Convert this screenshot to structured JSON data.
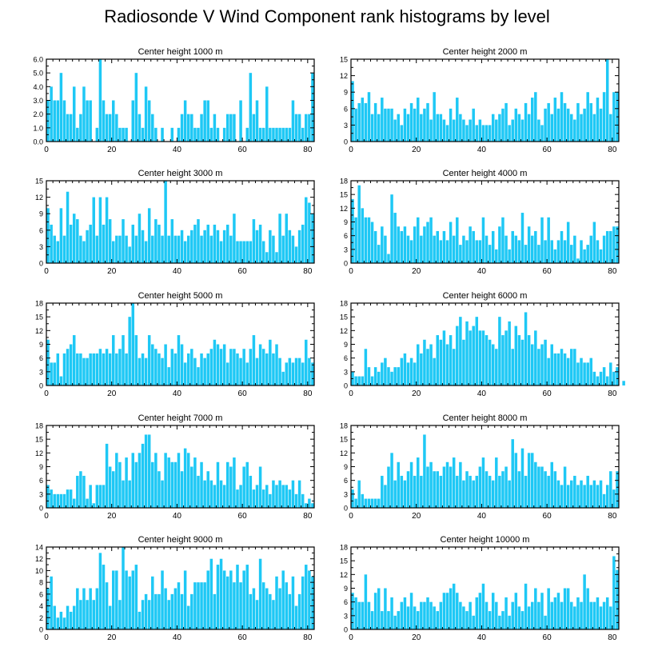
{
  "figure_title": "Radiosonde V Wind Component rank histograms by level",
  "colors": {
    "bar": "#1ec8f5",
    "bar_edge": "#ffffff",
    "axis": "#000000"
  },
  "chart_data": [
    {
      "type": "bar",
      "title": "Center height 1000 m",
      "xlabel": "",
      "ylabel": "",
      "xlim": [
        0,
        82
      ],
      "ylim": [
        0,
        6
      ],
      "xticks": [
        0,
        20,
        40,
        60,
        80
      ],
      "yticks": [
        0,
        1,
        2,
        3,
        4,
        5,
        6
      ],
      "ytick_labels": [
        "0.0",
        "1.0",
        "2.0",
        "3.0",
        "4.0",
        "5.0",
        "6.0"
      ],
      "values": [
        3,
        4,
        3,
        3,
        5,
        3,
        2,
        2,
        4,
        1,
        2,
        4,
        3,
        3,
        0,
        1,
        6,
        3,
        2,
        2,
        3,
        2,
        1,
        1,
        1,
        0,
        3,
        5,
        2,
        1,
        4,
        3,
        2,
        1,
        0,
        1,
        0,
        0,
        1,
        0,
        1,
        2,
        3,
        2,
        2,
        1,
        1,
        2,
        3,
        3,
        1,
        2,
        1,
        0,
        1,
        2,
        2,
        2,
        0,
        3,
        0,
        1,
        5,
        2,
        3,
        1,
        1,
        4,
        1,
        1,
        1,
        1,
        1,
        1,
        1,
        3,
        2,
        2,
        1,
        2,
        2,
        5
      ]
    },
    {
      "type": "bar",
      "title": "Center height 2000 m",
      "xlabel": "",
      "ylabel": "",
      "xlim": [
        0,
        82
      ],
      "ylim": [
        0,
        15
      ],
      "xticks": [
        0,
        20,
        40,
        60,
        80
      ],
      "yticks": [
        0,
        3,
        6,
        9,
        12,
        15
      ],
      "ytick_labels": [
        "0",
        "3",
        "6",
        "9",
        "12",
        "15"
      ],
      "values": [
        11,
        6,
        7,
        8,
        7,
        9,
        5,
        7,
        5,
        8,
        6,
        6,
        6,
        4,
        5,
        3,
        6,
        5,
        7,
        6,
        8,
        5,
        6,
        7,
        4,
        9,
        5,
        5,
        4,
        3,
        6,
        4,
        8,
        5,
        4,
        3,
        4,
        6,
        3,
        4,
        3,
        3,
        3,
        5,
        4,
        5,
        6,
        7,
        3,
        4,
        6,
        5,
        4,
        7,
        5,
        8,
        9,
        4,
        3,
        6,
        7,
        5,
        8,
        6,
        9,
        7,
        6,
        5,
        4,
        7,
        5,
        6,
        9,
        7,
        5,
        8,
        6,
        9,
        15,
        5,
        9,
        9
      ]
    },
    {
      "type": "bar",
      "title": "Center height 3000 m",
      "xlabel": "",
      "ylabel": "",
      "xlim": [
        0,
        82
      ],
      "ylim": [
        0,
        15
      ],
      "xticks": [
        0,
        20,
        40,
        60,
        80
      ],
      "yticks": [
        0,
        3,
        6,
        9,
        12,
        15
      ],
      "ytick_labels": [
        "0",
        "3",
        "6",
        "9",
        "12",
        "15"
      ],
      "values": [
        10,
        7,
        5,
        4,
        10,
        5,
        13,
        7,
        9,
        8,
        5,
        4,
        6,
        7,
        12,
        5,
        12,
        7,
        12,
        8,
        4,
        5,
        5,
        8,
        5,
        3,
        7,
        5,
        9,
        6,
        4,
        10,
        5,
        8,
        7,
        5,
        15,
        5,
        8,
        5,
        5,
        6,
        4,
        5,
        6,
        7,
        8,
        5,
        6,
        7,
        5,
        7,
        6,
        4,
        6,
        7,
        5,
        9,
        4,
        4,
        4,
        4,
        4,
        8,
        6,
        7,
        4,
        2,
        6,
        5,
        2,
        9,
        5,
        9,
        6,
        5,
        3,
        6,
        7,
        12,
        11,
        9
      ]
    },
    {
      "type": "bar",
      "title": "Center height 4000 m",
      "xlabel": "",
      "ylabel": "",
      "xlim": [
        0,
        82
      ],
      "ylim": [
        0,
        18
      ],
      "xticks": [
        0,
        20,
        40,
        60,
        80
      ],
      "yticks": [
        0,
        3,
        6,
        9,
        12,
        15,
        18
      ],
      "ytick_labels": [
        "0",
        "3",
        "6",
        "9",
        "12",
        "15",
        "18"
      ],
      "values": [
        14,
        10,
        17,
        12,
        10,
        10,
        9,
        7,
        4,
        8,
        6,
        2,
        15,
        11,
        8,
        7,
        8,
        6,
        5,
        8,
        10,
        6,
        8,
        9,
        10,
        6,
        7,
        5,
        7,
        5,
        9,
        6,
        10,
        4,
        6,
        5,
        8,
        7,
        5,
        5,
        10,
        6,
        4,
        7,
        3,
        8,
        10,
        6,
        3,
        7,
        6,
        5,
        11,
        4,
        8,
        6,
        7,
        4,
        10,
        5,
        10,
        5,
        3,
        5,
        7,
        5,
        9,
        4,
        6,
        1,
        5,
        3,
        4,
        6,
        9,
        5,
        3,
        6,
        7,
        7,
        8,
        8
      ]
    },
    {
      "type": "bar",
      "title": "Center height 5000 m",
      "xlabel": "",
      "ylabel": "",
      "xlim": [
        0,
        82
      ],
      "ylim": [
        0,
        18
      ],
      "xticks": [
        0,
        20,
        40,
        60,
        80
      ],
      "yticks": [
        0,
        3,
        6,
        9,
        12,
        15,
        18
      ],
      "ytick_labels": [
        "0",
        "3",
        "6",
        "9",
        "12",
        "15",
        "18"
      ],
      "values": [
        10,
        5,
        5,
        7,
        2,
        7,
        8,
        9,
        11,
        7,
        7,
        6,
        6,
        7,
        7,
        7,
        8,
        7,
        8,
        7,
        11,
        7,
        8,
        11,
        7,
        15,
        18,
        11,
        6,
        7,
        6,
        11,
        9,
        8,
        7,
        6,
        9,
        4,
        8,
        7,
        11,
        9,
        5,
        7,
        8,
        6,
        4,
        7,
        6,
        7,
        8,
        10,
        9,
        8,
        9,
        5,
        8,
        8,
        7,
        6,
        8,
        5,
        8,
        11,
        6,
        9,
        8,
        7,
        10,
        7,
        9,
        6,
        3,
        5,
        6,
        5,
        6,
        6,
        5,
        10,
        6,
        5
      ]
    },
    {
      "type": "bar",
      "title": "Center height 6000 m",
      "xlabel": "",
      "ylabel": "",
      "xlim": [
        0,
        82
      ],
      "ylim": [
        0,
        18
      ],
      "xticks": [
        0,
        20,
        40,
        60,
        80
      ],
      "yticks": [
        0,
        3,
        6,
        9,
        12,
        15,
        18
      ],
      "ytick_labels": [
        "0",
        "3",
        "6",
        "9",
        "12",
        "15",
        "18"
      ],
      "values": [
        3,
        2,
        2,
        2,
        8,
        4,
        2,
        4,
        3,
        5,
        6,
        4,
        3,
        4,
        4,
        6,
        7,
        5,
        6,
        5,
        9,
        7,
        10,
        8,
        9,
        6,
        11,
        10,
        12,
        9,
        11,
        8,
        13,
        15,
        10,
        14,
        12,
        13,
        15,
        12,
        12,
        11,
        10,
        9,
        8,
        15,
        11,
        12,
        14,
        8,
        13,
        11,
        10,
        16,
        11,
        9,
        12,
        8,
        9,
        10,
        6,
        9,
        7,
        7,
        8,
        7,
        6,
        8,
        8,
        5,
        6,
        5,
        5,
        6,
        3,
        2,
        3,
        4,
        2,
        5,
        3,
        4,
        0,
        1
      ]
    },
    {
      "type": "bar",
      "title": "Center height 7000 m",
      "xlabel": "",
      "ylabel": "",
      "xlim": [
        0,
        82
      ],
      "ylim": [
        0,
        18
      ],
      "xticks": [
        0,
        20,
        40,
        60,
        80
      ],
      "yticks": [
        0,
        3,
        6,
        9,
        12,
        15,
        18
      ],
      "ytick_labels": [
        "0",
        "3",
        "6",
        "9",
        "12",
        "15",
        "18"
      ],
      "values": [
        5,
        4,
        3,
        3,
        3,
        3,
        4,
        4,
        2,
        7,
        8,
        7,
        2,
        5,
        1,
        5,
        5,
        5,
        14,
        9,
        8,
        12,
        10,
        6,
        11,
        6,
        12,
        10,
        12,
        14,
        16,
        16,
        10,
        12,
        8,
        6,
        12,
        11,
        10,
        10,
        12,
        8,
        13,
        12,
        9,
        11,
        7,
        10,
        6,
        8,
        6,
        5,
        10,
        6,
        5,
        10,
        9,
        11,
        4,
        5,
        9,
        10,
        7,
        4,
        5,
        9,
        4,
        5,
        3,
        6,
        5,
        6,
        5,
        5,
        4,
        6,
        3,
        6,
        3,
        1,
        2,
        1
      ]
    },
    {
      "type": "bar",
      "title": "Center height 8000 m",
      "xlabel": "",
      "ylabel": "",
      "xlim": [
        0,
        82
      ],
      "ylim": [
        0,
        18
      ],
      "xticks": [
        0,
        20,
        40,
        60,
        80
      ],
      "yticks": [
        0,
        3,
        6,
        9,
        12,
        15,
        18
      ],
      "ytick_labels": [
        "0",
        "3",
        "6",
        "9",
        "12",
        "15",
        "18"
      ],
      "values": [
        4,
        2,
        6,
        3,
        2,
        2,
        2,
        2,
        2,
        7,
        5,
        9,
        12,
        6,
        10,
        7,
        6,
        8,
        10,
        7,
        11,
        7,
        16,
        9,
        10,
        8,
        8,
        7,
        9,
        10,
        9,
        11,
        7,
        10,
        6,
        8,
        7,
        6,
        7,
        9,
        11,
        8,
        7,
        6,
        11,
        7,
        8,
        9,
        6,
        15,
        12,
        8,
        13,
        7,
        12,
        12,
        10,
        9,
        9,
        8,
        7,
        10,
        8,
        6,
        5,
        9,
        5,
        6,
        7,
        5,
        6,
        5,
        7,
        5,
        6,
        5,
        6,
        3,
        5,
        8,
        4,
        8
      ]
    },
    {
      "type": "bar",
      "title": "Center height 9000 m",
      "xlabel": "",
      "ylabel": "",
      "xlim": [
        0,
        82
      ],
      "ylim": [
        0,
        14
      ],
      "xticks": [
        0,
        20,
        40,
        60,
        80
      ],
      "yticks": [
        0,
        2,
        4,
        6,
        8,
        10,
        12,
        14
      ],
      "ytick_labels": [
        "0",
        "2",
        "4",
        "6",
        "8",
        "10",
        "12",
        "14"
      ],
      "values": [
        7,
        9,
        4,
        2,
        3,
        2,
        4,
        3,
        4,
        7,
        5,
        7,
        5,
        7,
        5,
        7,
        13,
        11,
        8,
        4,
        10,
        10,
        5,
        14,
        10,
        9,
        10,
        11,
        3,
        5,
        6,
        5,
        9,
        6,
        6,
        10,
        7,
        5,
        6,
        7,
        8,
        6,
        10,
        4,
        6,
        8,
        8,
        8,
        8,
        10,
        12,
        6,
        11,
        12,
        10,
        9,
        10,
        8,
        11,
        8,
        10,
        11,
        6,
        7,
        5,
        12,
        8,
        7,
        6,
        5,
        9,
        7,
        10,
        8,
        6,
        9,
        4,
        6,
        9,
        11,
        10,
        9
      ]
    },
    {
      "type": "bar",
      "title": "Center height 10000 m",
      "xlabel": "",
      "ylabel": "",
      "xlim": [
        0,
        82
      ],
      "ylim": [
        0,
        18
      ],
      "xticks": [
        0,
        20,
        40,
        60,
        80
      ],
      "yticks": [
        0,
        3,
        6,
        9,
        12,
        15,
        18
      ],
      "ytick_labels": [
        "0",
        "3",
        "6",
        "9",
        "12",
        "15",
        "18"
      ],
      "values": [
        8,
        7,
        6,
        6,
        12,
        6,
        4,
        8,
        9,
        4,
        9,
        4,
        7,
        3,
        4,
        6,
        7,
        5,
        8,
        5,
        4,
        6,
        6,
        7,
        6,
        5,
        4,
        6,
        8,
        8,
        9,
        10,
        8,
        6,
        5,
        4,
        6,
        3,
        7,
        8,
        10,
        6,
        4,
        8,
        6,
        3,
        4,
        7,
        3,
        6,
        8,
        5,
        4,
        10,
        5,
        6,
        9,
        6,
        8,
        3,
        9,
        6,
        7,
        8,
        6,
        9,
        9,
        6,
        5,
        7,
        6,
        12,
        9,
        6,
        6,
        7,
        5,
        6,
        7,
        5,
        16,
        13
      ]
    }
  ]
}
